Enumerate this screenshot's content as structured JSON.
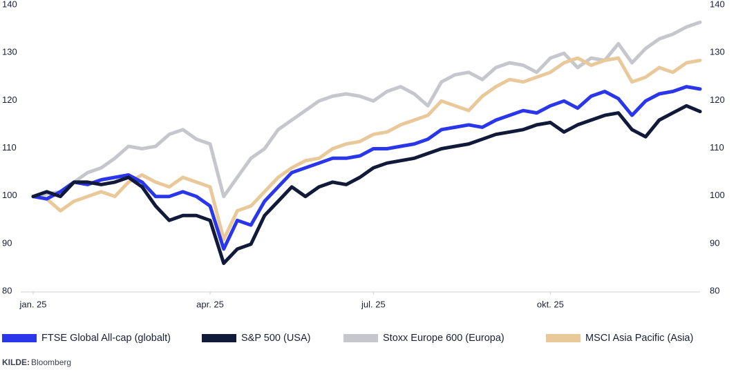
{
  "chart_data": {
    "type": "line",
    "categories": [
      "jan. 25",
      null,
      null,
      null,
      null,
      null,
      null,
      null,
      null,
      null,
      null,
      null,
      null,
      "apr. 25",
      null,
      null,
      null,
      null,
      null,
      null,
      null,
      null,
      null,
      null,
      null,
      "jul. 25",
      null,
      null,
      null,
      null,
      null,
      null,
      null,
      null,
      null,
      null,
      null,
      null,
      "okt. 25",
      null,
      null,
      null,
      null,
      null,
      null,
      null,
      null,
      null,
      null,
      null
    ],
    "ylim": [
      80,
      140
    ],
    "yticks": [
      80,
      90,
      100,
      110,
      120,
      130,
      140
    ],
    "y2lim": [
      80,
      140
    ],
    "y2ticks": [
      80,
      90,
      100,
      110,
      120,
      130,
      140
    ],
    "series": [
      {
        "name": "FTSE Global All-cap (globalt)",
        "color": "#2a36ea",
        "values": [
          100,
          99.5,
          101,
          103,
          102.5,
          103.5,
          104,
          104.5,
          103,
          100,
          100,
          101,
          100,
          98,
          89,
          95,
          94,
          99,
          102,
          105,
          106,
          107,
          108,
          108,
          108.5,
          110,
          110,
          110.5,
          111,
          112,
          114,
          114.5,
          115,
          114.5,
          116,
          117,
          118,
          117.5,
          119,
          120,
          118.5,
          121,
          122,
          120.5,
          117,
          120,
          121.5,
          122,
          123,
          122.5
        ]
      },
      {
        "name": "S&P 500 (USA)",
        "color": "#121a3a",
        "values": [
          100,
          101,
          100,
          103,
          103,
          102.5,
          103,
          104,
          102,
          98,
          95,
          96,
          96,
          95,
          86,
          89,
          90,
          96,
          99,
          102,
          100,
          102,
          103,
          102.5,
          104,
          106,
          107,
          107.5,
          108,
          109,
          110,
          110.5,
          111,
          112,
          113,
          113.5,
          114,
          115,
          115.5,
          113.5,
          115,
          116,
          117,
          117.5,
          114,
          112.5,
          116,
          117.5,
          119,
          117.8
        ]
      },
      {
        "name": "Stoxx Europe 600 (Europa)",
        "color": "#c5c7cc",
        "values": [
          100,
          100.5,
          101,
          103,
          105,
          106,
          108,
          110.5,
          110,
          110.5,
          113,
          114,
          112,
          111,
          100,
          104,
          108,
          110,
          114,
          116,
          118,
          120,
          121,
          121.5,
          121,
          120,
          122,
          123,
          121.5,
          119,
          124,
          125.5,
          126,
          124.5,
          127,
          128,
          127.5,
          126,
          129,
          130,
          127,
          129,
          128.5,
          132,
          128,
          131,
          133,
          134,
          135.5,
          136.5
        ]
      },
      {
        "name": "MSCI Asia Pacific (Asia)",
        "color": "#e9c99a",
        "values": [
          100,
          99.5,
          97,
          99,
          100,
          101,
          100,
          103,
          104.5,
          103,
          102,
          104,
          103,
          102,
          91,
          97,
          98,
          101,
          104,
          106,
          107.5,
          108,
          110,
          111,
          111.5,
          113,
          113.5,
          115,
          116,
          117,
          120,
          119,
          118,
          121,
          123,
          124.5,
          124,
          125,
          126,
          128,
          129,
          127.5,
          128.5,
          129,
          124,
          125,
          127,
          126,
          128,
          128.5
        ]
      }
    ],
    "source_label": "KILDE:",
    "source": "Bloomberg"
  }
}
